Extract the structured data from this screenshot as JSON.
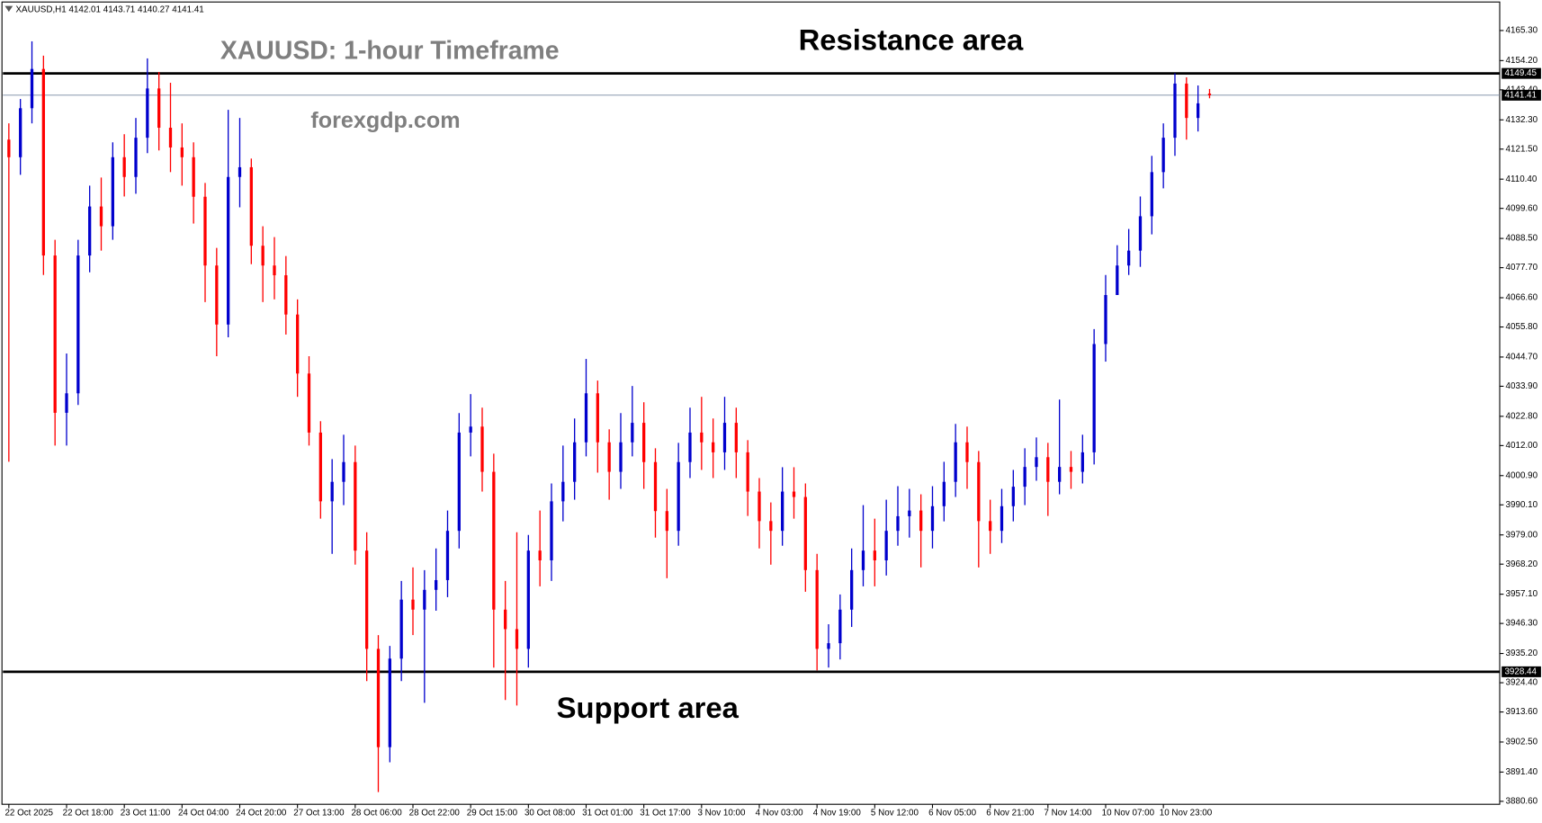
{
  "chart_data": {
    "type": "candlestick",
    "header": "XAUUSD,H1  4142.01 4143.71 4140.27 4141.41",
    "title": "XAUUSD: 1-hour Timeframe",
    "watermark": "forexgdp.com",
    "annotations": [
      "Resistance area",
      "Support area"
    ],
    "up_color": "#0000cd",
    "down_color": "#ff0000",
    "categories": [
      "22 Oct 2025",
      null,
      null,
      null,
      null,
      "22 Oct 18:00",
      null,
      null,
      null,
      null,
      "23 Oct 11:00",
      null,
      null,
      null,
      null,
      "24 Oct 04:00",
      null,
      null,
      null,
      null,
      "24 Oct 20:00",
      null,
      null,
      null,
      null,
      "27 Oct 13:00",
      null,
      null,
      null,
      null,
      "28 Oct 06:00",
      null,
      null,
      null,
      null,
      "28 Oct 22:00",
      null,
      null,
      null,
      null,
      "29 Oct 15:00",
      null,
      null,
      null,
      null,
      "30 Oct 08:00",
      null,
      null,
      null,
      null,
      "31 Oct 01:00",
      null,
      null,
      null,
      null,
      "31 Oct 17:00",
      null,
      null,
      null,
      null,
      "3 Nov 10:00",
      null,
      null,
      null,
      null,
      "4 Nov 03:00",
      null,
      null,
      null,
      null,
      "4 Nov 19:00",
      null,
      null,
      null,
      null,
      "5 Nov 12:00",
      null,
      null,
      null,
      null,
      "6 Nov 05:00",
      null,
      null,
      null,
      null,
      "6 Nov 21:00",
      null,
      null,
      null,
      null,
      "7 Nov 14:00",
      null,
      null,
      null,
      null,
      "10 Nov 07:00",
      null,
      null,
      null,
      null,
      "10 Nov 23:00",
      null,
      null,
      null,
      null
    ],
    "open": [
      4125,
      4118.5,
      4136.6,
      4151.1,
      4082.2,
      4024.1,
      4031.3,
      4082.2,
      4100.3,
      4093.0,
      4118.5,
      4111.2,
      4125.7,
      4143.9,
      4129.4,
      4122.1,
      4118.5,
      4103.9,
      4078.5,
      4056.7,
      4111.2,
      4114.8,
      4085.8,
      4078.5,
      4074.9,
      4060.4,
      4038.6,
      4016.8,
      3991.4,
      3998.6,
      4005.9,
      3973.2,
      3936.9,
      3900.6,
      3933.3,
      3955.1,
      3951.4,
      3958.7,
      3962.3,
      3980.5,
      4016.8,
      4019.0,
      4002.3,
      3951.4,
      3944.2,
      3936.9,
      3973.2,
      3969.6,
      3991.4,
      3998.6,
      4013.2,
      4031.3,
      4013.2,
      4002.3,
      4013.2,
      4020.4,
      4005.9,
      3987.8,
      3980.5,
      4005.9,
      4016.8,
      4013.2,
      4009.5,
      4020.4,
      4009.5,
      3995.0,
      3984.1,
      3980.5,
      3995.0,
      3993.0,
      3966.0,
      3936.9,
      3939.0,
      3951.4,
      3966.0,
      3973.2,
      3969.6,
      3980.5,
      3985.9,
      3988.0,
      3980.5,
      3989.6,
      3998.6,
      4013.2,
      4005.9,
      3984.1,
      3980.5,
      3989.6,
      3996.8,
      4004.1,
      4007.7,
      3998.6,
      4004.1,
      4002.3,
      4009.5,
      4049.5,
      4067.6,
      4078.5,
      4084.0,
      4096.7,
      4113.0,
      4125.7,
      4145.7,
      4133.0,
      4142.01
    ],
    "high": [
      4131,
      4140,
      4161.3,
      4156,
      4088,
      4046,
      4088,
      4108,
      4111,
      4124,
      4127,
      4133,
      4155,
      4150,
      4146,
      4131,
      4124,
      4109,
      4085,
      4136,
      4133,
      4118,
      4093,
      4089,
      4082,
      4066,
      4045,
      4021,
      4007,
      4016,
      4012,
      3980,
      3942,
      3938,
      3962,
      3967,
      3966,
      3974,
      3988,
      4024,
      4031,
      4026,
      4009,
      3962,
      3980,
      3979,
      3988,
      3998,
      4012,
      4022,
      4044,
      4036,
      4018,
      4024,
      4034,
      4028,
      4011,
      3996,
      4013,
      4026,
      4030,
      4022,
      4030,
      4026,
      4014,
      4000,
      3991,
      4004,
      4004,
      3998,
      3972,
      3946,
      3957,
      3974,
      3990,
      3985,
      3992,
      3997,
      3996,
      3994,
      3997,
      4006,
      4020,
      4019,
      4010,
      3992,
      3996,
      4003,
      4011,
      4015,
      4013,
      4029,
      4010,
      4016,
      4055,
      4075,
      4086,
      4092,
      4104,
      4119,
      4131,
      4149.5,
      4148,
      4145,
      4143.71
    ],
    "low": [
      4006,
      4112,
      4131,
      4075,
      4012,
      4012,
      4027,
      4076,
      4084,
      4088,
      4104,
      4105,
      4120,
      4121,
      4113,
      4108,
      4094,
      4065,
      4045,
      4052,
      4100,
      4079,
      4065,
      4066,
      4053,
      4030,
      4012,
      3985,
      3972,
      3990,
      3968,
      3925,
      3884,
      3895,
      3925,
      3942,
      3917,
      3951,
      3956,
      3974,
      4008,
      3995,
      3930,
      3918,
      3916,
      3930,
      3960,
      3962,
      3984,
      3992,
      4008,
      4002,
      3992,
      3996,
      4008,
      3996,
      3978,
      3963,
      3975,
      4000,
      4003,
      4000,
      4003,
      4000,
      3986,
      3974,
      3968,
      3975,
      3985,
      3958,
      3929,
      3930,
      3933,
      3945,
      3960,
      3960,
      3964,
      3975,
      3978,
      3967,
      3974,
      3984,
      3993,
      3996,
      3967,
      3972,
      3976,
      3984,
      3990,
      3999,
      3986,
      3994,
      3996,
      3998,
      4005,
      4043,
      4070,
      4075,
      4078,
      4090,
      4107,
      4119,
      4125,
      4128,
      4140.27
    ],
    "close": [
      4118.5,
      4136.6,
      4151.1,
      4082.2,
      4024.1,
      4031.3,
      4082.2,
      4100.3,
      4093.0,
      4118.5,
      4111.2,
      4125.7,
      4143.9,
      4129.4,
      4122.1,
      4118.5,
      4103.9,
      4078.5,
      4056.7,
      4111.2,
      4114.8,
      4085.8,
      4078.5,
      4074.9,
      4060.4,
      4038.6,
      4016.8,
      3991.4,
      3998.6,
      4005.9,
      3973.2,
      3936.9,
      3900.6,
      3933.3,
      3955.1,
      3951.4,
      3958.7,
      3962.3,
      3980.5,
      4016.8,
      4019.0,
      4002.3,
      3951.4,
      3944.2,
      3936.9,
      3973.2,
      3969.6,
      3991.4,
      3998.6,
      4013.2,
      4031.3,
      4013.2,
      4002.3,
      4013.2,
      4020.4,
      4005.9,
      3987.8,
      3980.5,
      4005.9,
      4016.8,
      4013.2,
      4009.5,
      4020.4,
      4009.5,
      3995.0,
      3984.1,
      3980.5,
      3995.0,
      3993.0,
      3966.0,
      3936.9,
      3939.0,
      3951.4,
      3966.0,
      3973.2,
      3969.6,
      3980.5,
      3985.9,
      3988.0,
      3980.5,
      3989.6,
      3998.6,
      4013.2,
      4005.9,
      3984.1,
      3980.5,
      3989.6,
      3996.8,
      4004.1,
      4007.7,
      3998.6,
      4004.1,
      4002.3,
      4009.5,
      4049.5,
      4067.6,
      4078.5,
      4084.0,
      4096.7,
      4113.0,
      4125.7,
      4145.7,
      4133.0,
      4138.4,
      4141.41
    ],
    "levels": [
      {
        "value": 4149.45,
        "label": "4149.45",
        "style": "heavy"
      },
      {
        "value": 4141.41,
        "label": "4141.41",
        "style": "thin"
      },
      {
        "value": 3928.44,
        "label": "3928.44",
        "style": "heavy"
      }
    ],
    "ylim": [
      3879.5,
      4176.56
    ],
    "yticks": [
      {
        "value": 4165.3,
        "label": "4165.30"
      },
      {
        "value": 4154.2,
        "label": "4154.20"
      },
      {
        "value": 4143.4,
        "label": "4143.40"
      },
      {
        "value": 4132.3,
        "label": "4132.30"
      },
      {
        "value": 4121.5,
        "label": "4121.50"
      },
      {
        "value": 4110.4,
        "label": "4110.40"
      },
      {
        "value": 4099.6,
        "label": "4099.60"
      },
      {
        "value": 4088.5,
        "label": "4088.50"
      },
      {
        "value": 4077.7,
        "label": "4077.70"
      },
      {
        "value": 4066.6,
        "label": "4066.60"
      },
      {
        "value": 4055.8,
        "label": "4055.80"
      },
      {
        "value": 4044.7,
        "label": "4044.70"
      },
      {
        "value": 4033.9,
        "label": "4033.90"
      },
      {
        "value": 4022.8,
        "label": "4022.80"
      },
      {
        "value": 4012,
        "label": "4012.00"
      },
      {
        "value": 4000.9,
        "label": "4000.90"
      },
      {
        "value": 3990.1,
        "label": "3990.10"
      },
      {
        "value": 3979,
        "label": "3979.00"
      },
      {
        "value": 3968.2,
        "label": "3968.20"
      },
      {
        "value": 3957.1,
        "label": "3957.10"
      },
      {
        "value": 3946.3,
        "label": "3946.30"
      },
      {
        "value": 3935.2,
        "label": "3935.20"
      },
      {
        "value": 3924.4,
        "label": "3924.40"
      },
      {
        "value": 3913.6,
        "label": "3913.60"
      },
      {
        "value": 3902.5,
        "label": "3902.50"
      },
      {
        "value": 3891.4,
        "label": "3891.40"
      },
      {
        "value": 3880.6,
        "label": "3880.60"
      }
    ]
  }
}
